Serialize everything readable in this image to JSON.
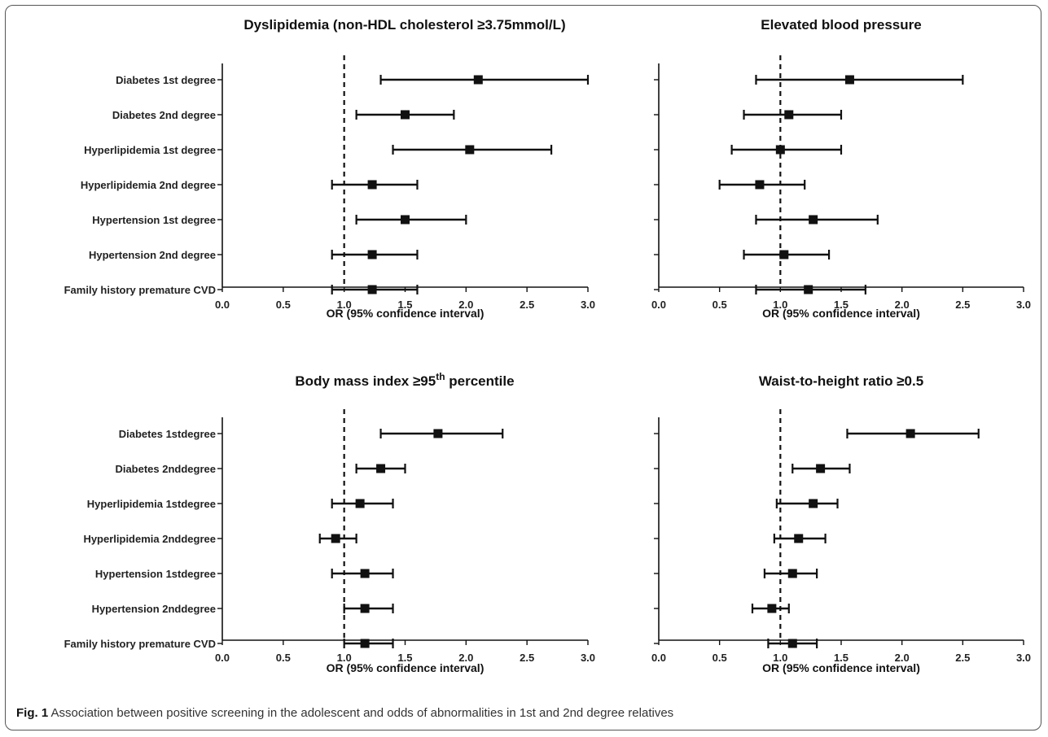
{
  "caption": {
    "label": "Fig. 1",
    "text": "Association between positive screening in the adolescent and odds of abnormalities in 1st and 2nd degree relatives"
  },
  "chart_data": [
    {
      "type": "forest",
      "title": "Dyslipidemia (non-HDL cholesterol ≥3.75mmol/L)",
      "xlabel": "OR (95% confidence interval)",
      "xlim": [
        0,
        3
      ],
      "xticks": [
        "0.0",
        "0.5",
        "1.0",
        "1.5",
        "2.0",
        "2.5",
        "3.0"
      ],
      "reference_line": 1.0,
      "show_labels": true,
      "rows": [
        {
          "label": "Diabetes 1st degree",
          "or": 2.1,
          "low": 1.3,
          "high": 3.0
        },
        {
          "label": "Diabetes 2nd degree",
          "or": 1.5,
          "low": 1.1,
          "high": 1.9
        },
        {
          "label": "Hyperlipidemia 1st degree",
          "or": 2.03,
          "low": 1.4,
          "high": 2.7
        },
        {
          "label": "Hyperlipidemia 2nd degree",
          "or": 1.23,
          "low": 0.9,
          "high": 1.6
        },
        {
          "label": "Hypertension 1st degree",
          "or": 1.5,
          "low": 1.1,
          "high": 2.0
        },
        {
          "label": "Hypertension 2nd degree",
          "or": 1.23,
          "low": 0.9,
          "high": 1.6
        },
        {
          "label": "Family history premature CVD",
          "or": 1.23,
          "low": 0.9,
          "high": 1.6
        }
      ]
    },
    {
      "type": "forest",
      "title": "Elevated blood pressure",
      "xlabel": "OR (95% confidence interval)",
      "xlim": [
        0,
        3
      ],
      "xticks": [
        "0.0",
        "0.5",
        "1.0",
        "1.5",
        "2.0",
        "2.5",
        "3.0"
      ],
      "reference_line": 1.0,
      "show_labels": false,
      "rows": [
        {
          "or": 1.57,
          "low": 0.8,
          "high": 2.5
        },
        {
          "or": 1.07,
          "low": 0.7,
          "high": 1.5
        },
        {
          "or": 1.0,
          "low": 0.6,
          "high": 1.5
        },
        {
          "or": 0.83,
          "low": 0.5,
          "high": 1.2
        },
        {
          "or": 1.27,
          "low": 0.8,
          "high": 1.8
        },
        {
          "or": 1.03,
          "low": 0.7,
          "high": 1.4
        },
        {
          "or": 1.23,
          "low": 0.8,
          "high": 1.7
        }
      ]
    },
    {
      "type": "forest",
      "title": "Body mass index ≥95",
      "title_sup": "th",
      "title_after": " percentile",
      "xlabel": "OR (95% confidence interval)",
      "xlim": [
        0,
        3
      ],
      "xticks": [
        "0.0",
        "0.5",
        "1.0",
        "1.5",
        "2.0",
        "2.5",
        "3.0"
      ],
      "reference_line": 1.0,
      "show_labels": true,
      "rows": [
        {
          "label": "Diabetes 1stdegree",
          "or": 1.77,
          "low": 1.3,
          "high": 2.3
        },
        {
          "label": "Diabetes 2nddegree",
          "or": 1.3,
          "low": 1.1,
          "high": 1.5
        },
        {
          "label": "Hyperlipidemia 1stdegree",
          "or": 1.13,
          "low": 0.9,
          "high": 1.4
        },
        {
          "label": "Hyperlipidemia 2nddegree",
          "or": 0.93,
          "low": 0.8,
          "high": 1.1
        },
        {
          "label": "Hypertension 1stdegree",
          "or": 1.17,
          "low": 0.9,
          "high": 1.4
        },
        {
          "label": "Hypertension 2nddegree",
          "or": 1.17,
          "low": 1.0,
          "high": 1.4
        },
        {
          "label": "Family history premature CVD",
          "or": 1.17,
          "low": 1.0,
          "high": 1.4
        }
      ]
    },
    {
      "type": "forest",
      "title": "Waist-to-height ratio ≥0.5",
      "xlabel": "OR (95% confidence interval)",
      "xlim": [
        0,
        3
      ],
      "xticks": [
        "0.0",
        "0.5",
        "1.0",
        "1.5",
        "2.0",
        "2.5",
        "3.0"
      ],
      "reference_line": 1.0,
      "show_labels": false,
      "rows": [
        {
          "or": 2.07,
          "low": 1.55,
          "high": 2.63
        },
        {
          "or": 1.33,
          "low": 1.1,
          "high": 1.57
        },
        {
          "or": 1.27,
          "low": 0.97,
          "high": 1.47
        },
        {
          "or": 1.15,
          "low": 0.95,
          "high": 1.37
        },
        {
          "or": 1.1,
          "low": 0.87,
          "high": 1.3
        },
        {
          "or": 0.93,
          "low": 0.77,
          "high": 1.07
        },
        {
          "or": 1.1,
          "low": 0.9,
          "high": 1.3
        }
      ]
    }
  ]
}
